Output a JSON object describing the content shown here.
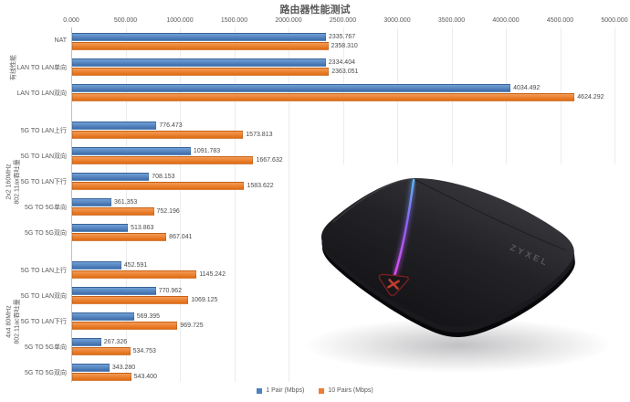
{
  "chart_data": {
    "type": "bar",
    "orientation": "horizontal",
    "title": "路由器性能测试",
    "xlabel": "",
    "ylabel": "",
    "xlim": [
      0,
      5000
    ],
    "grid": "vertical",
    "legend_position": "bottom-center",
    "x_ticks": [
      "0.000",
      "500.000",
      "1000.000",
      "1500.000",
      "2000.000",
      "2500.000",
      "3000.000",
      "3500.000",
      "4000.000",
      "4500.000",
      "5000.000"
    ],
    "series_names": [
      "1 Pair (Mbps)",
      "10 Pairs (Mbps)"
    ],
    "groups": [
      {
        "label": "有线性能",
        "rows": [
          {
            "category": "NAT",
            "values": [
              2335.767,
              2358.31
            ]
          },
          {
            "category": "LAN TO  LAN单向",
            "values": [
              2334.404,
              2363.051
            ]
          },
          {
            "category": "LAN TO  LAN双向",
            "values": [
              4034.492,
              4624.292
            ]
          }
        ]
      },
      {
        "label": "2x2 160MHz\n802.11ax吞吐量",
        "rows": [
          {
            "category": "5G TO  LAN上行",
            "values": [
              776.473,
              1573.813
            ]
          },
          {
            "category": "5G TO  LAN双向",
            "values": [
              1091.783,
              1667.632
            ]
          },
          {
            "category": "5G TO  LAN下行",
            "values": [
              708.153,
              1583.622
            ]
          },
          {
            "category": "5G  TO  5G单向",
            "values": [
              361.353,
              752.196
            ]
          },
          {
            "category": "5G  TO  5G双向",
            "values": [
              513.863,
              867.041
            ]
          }
        ]
      },
      {
        "label": "4x4 80MHz\n802.11ac吞吐量",
        "rows": [
          {
            "category": "5G  TO  LAN上行",
            "values": [
              452.591,
              1145.242
            ]
          },
          {
            "category": "5G  TO  LAN双向",
            "values": [
              770.962,
              1069.125
            ]
          },
          {
            "category": "5G  TO  LAN下行",
            "values": [
              569.395,
              969.725
            ]
          },
          {
            "category": "5G  TO  5G单向",
            "values": [
              267.326,
              534.753
            ]
          },
          {
            "category": "5G  TO  5G双向",
            "values": [
              343.28,
              543.4
            ]
          }
        ]
      }
    ]
  },
  "colors": {
    "series1": "#4E81BD",
    "series1_top": "#6FA0D6",
    "series1_bottom": "#3E6CA9",
    "series2": "#ED7D31",
    "series2_top": "#F59A55",
    "series2_bottom": "#DF6B12",
    "axis": "#BFBFBF",
    "gridline": "#ECECEC",
    "text": "#595959"
  },
  "product_image": {
    "brand": "ZYXEL",
    "description": "black-router-photo"
  }
}
